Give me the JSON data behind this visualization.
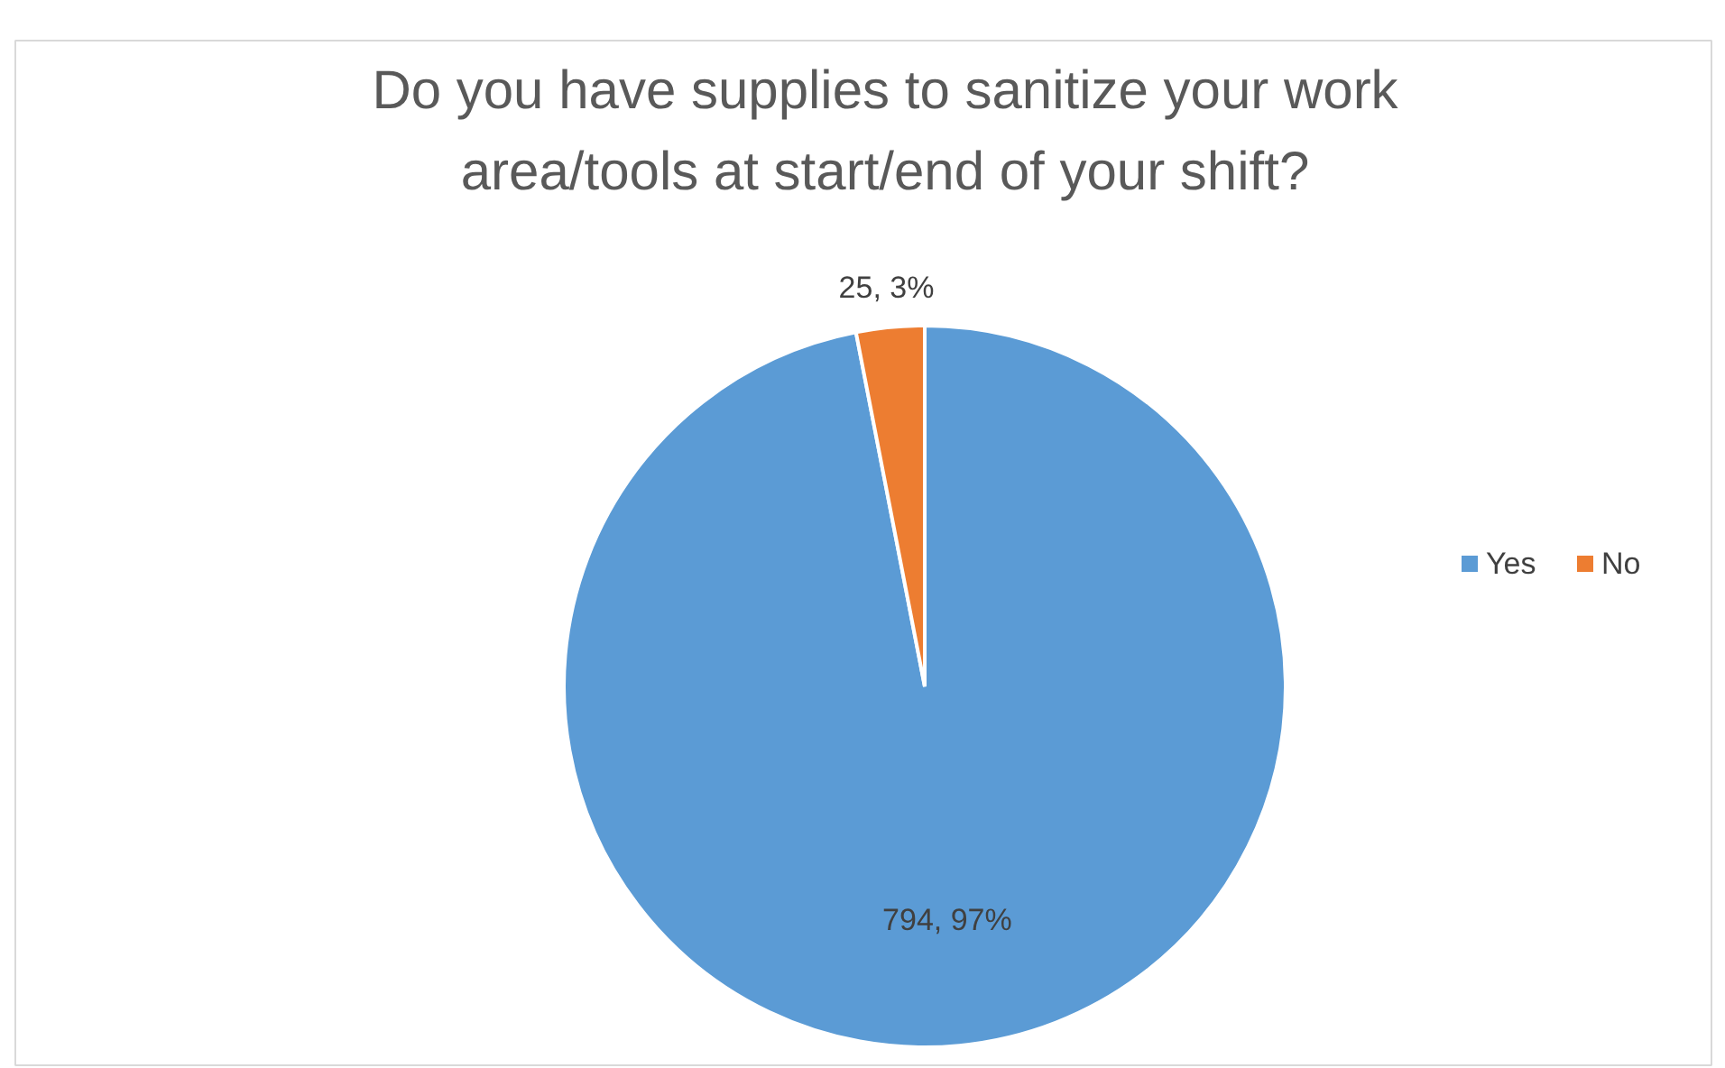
{
  "chart_data": {
    "type": "pie",
    "title": "Do you have supplies to sanitize your work\narea/tools at start/end of your shift?",
    "categories": [
      "Yes",
      "No"
    ],
    "values": [
      794,
      25
    ],
    "colors": [
      "#5b9bd5",
      "#ed7d31"
    ],
    "value_labels": [
      "794, 97%",
      "25, 3%"
    ],
    "legend": "right"
  }
}
